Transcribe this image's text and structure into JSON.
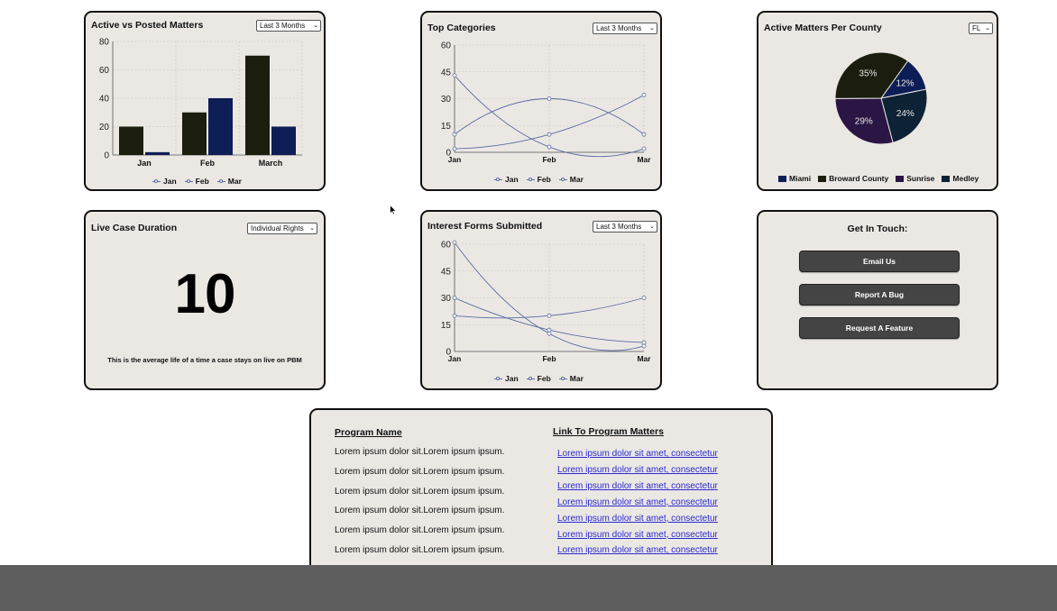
{
  "colors": {
    "card_bg": "#ebe8e4",
    "bar_dark": "#1b1e0e",
    "bar_navy": "#0d1d55",
    "line": "#5b6aa0",
    "pie_miami": "#0d1d55",
    "pie_broward": "#1b1e0e",
    "pie_sunrise": "#2a1545",
    "pie_medley": "#0d2235",
    "button_bg": "#444444",
    "link": "#2a2ad0",
    "footer_bar": "#5e5e5e"
  },
  "active_vs_posted": {
    "title": "Active vs Posted Matters",
    "select": "Last 3 Months",
    "legend": [
      "Jan",
      "Feb",
      "Mar"
    ]
  },
  "top_categories": {
    "title": "Top Categories",
    "select": "Last 3 Months",
    "legend": [
      "Jan",
      "Feb",
      "Mar"
    ]
  },
  "matters_per_county": {
    "title": "Active Matters Per County",
    "select": "FL"
  },
  "live_case_duration": {
    "title": "Live Case Duration",
    "select": "Individual Rights",
    "value": "10",
    "description": "This is the average life of a time a case stays on live on PBM"
  },
  "interest_forms": {
    "title": "Interest Forms Submitted",
    "select": "Last 3 Months",
    "legend": [
      "Jan",
      "Feb",
      "Mar"
    ]
  },
  "contact": {
    "title": "Get In Touch:",
    "email_label": "Email Us",
    "bug_label": "Report A Bug",
    "feature_label": "Request A Feature"
  },
  "programs": {
    "col_name": "Program Name",
    "col_link": "Link To Program Matters",
    "rows": [
      {
        "name": "Lorem ipsum dolor sit.Lorem ipsum ipsum.",
        "link": "Lorem ipsum dolor sit amet, consectetur"
      },
      {
        "name": "Lorem ipsum dolor sit.Lorem ipsum ipsum.",
        "link": "Lorem ipsum dolor sit amet, consectetur"
      },
      {
        "name": "Lorem ipsum dolor sit.Lorem ipsum ipsum.",
        "link": "Lorem ipsum dolor sit amet, consectetur"
      },
      {
        "name": "Lorem ipsum dolor sit.Lorem ipsum ipsum.",
        "link": "Lorem ipsum dolor sit amet, consectetur"
      },
      {
        "name": "Lorem ipsum dolor sit.Lorem ipsum ipsum.",
        "link": "Lorem ipsum dolor sit amet, consectetur"
      },
      {
        "name": "Lorem ipsum dolor sit.Lorem ipsum ipsum.",
        "link": "Lorem ipsum dolor sit amet, consectetur"
      },
      {
        "name": "",
        "link": "Lorem ipsum dolor sit amet, consectetur"
      }
    ]
  },
  "chart_data": [
    {
      "id": "active_vs_posted",
      "type": "bar",
      "categories": [
        "Jan",
        "Feb",
        "March"
      ],
      "series": [
        {
          "values": [
            20,
            30,
            70
          ]
        },
        {
          "values": [
            2,
            40,
            20
          ]
        }
      ],
      "ylim": [
        0,
        80
      ],
      "yticks": [
        0,
        20,
        40,
        60,
        80
      ],
      "grid": true
    },
    {
      "id": "top_categories",
      "type": "line",
      "x": [
        "Jan",
        "Feb",
        "Mar"
      ],
      "series": [
        {
          "values": [
            43,
            3,
            2
          ]
        },
        {
          "values": [
            10,
            30,
            10
          ]
        },
        {
          "values": [
            2,
            10,
            32
          ]
        }
      ],
      "ylim": [
        0,
        60
      ],
      "yticks": [
        0,
        15,
        30,
        45,
        60
      ],
      "grid": true
    },
    {
      "id": "matters_per_county",
      "type": "pie",
      "slices": [
        {
          "name": "Miami",
          "value": 12,
          "label": "12%"
        },
        {
          "name": "Medley",
          "value": 24,
          "label": "24%"
        },
        {
          "name": "Sunrise",
          "value": 29,
          "label": "29%"
        },
        {
          "name": "Broward County",
          "value": 35,
          "label": "35%"
        }
      ],
      "legend": [
        "Miami",
        "Broward County",
        "Sunrise",
        "Medley"
      ]
    },
    {
      "id": "interest_forms",
      "type": "line",
      "x": [
        "Jan",
        "Feb",
        "Mar"
      ],
      "series": [
        {
          "values": [
            61,
            10,
            3
          ]
        },
        {
          "values": [
            30,
            12,
            5
          ]
        },
        {
          "values": [
            20,
            20,
            30
          ]
        }
      ],
      "ylim": [
        0,
        60
      ],
      "yticks": [
        0,
        15,
        30,
        45,
        60
      ],
      "grid": true
    }
  ]
}
